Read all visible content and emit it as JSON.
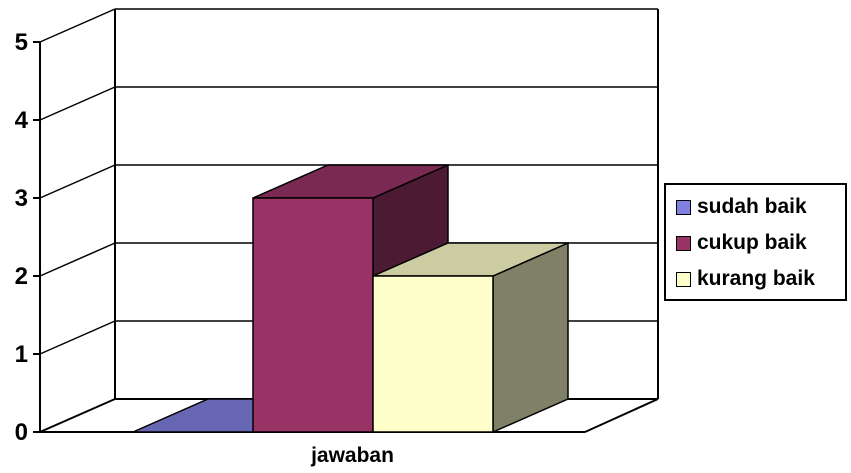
{
  "chart_data": {
    "type": "bar",
    "categories": [
      "jawaban"
    ],
    "series": [
      {
        "name": "sudah baik",
        "values": [
          0
        ],
        "color": "#8080e0"
      },
      {
        "name": "cukup baik",
        "values": [
          3
        ],
        "color": "#993366"
      },
      {
        "name": "kurang baik",
        "values": [
          2
        ],
        "color": "#ffffcc"
      }
    ],
    "ylim": [
      0,
      5
    ],
    "yticks": [
      "0",
      "1",
      "2",
      "3",
      "4",
      "5"
    ],
    "title": "",
    "xlabel": "",
    "ylabel": "",
    "grid": true,
    "legend_position": "right",
    "style": "3d-column"
  }
}
